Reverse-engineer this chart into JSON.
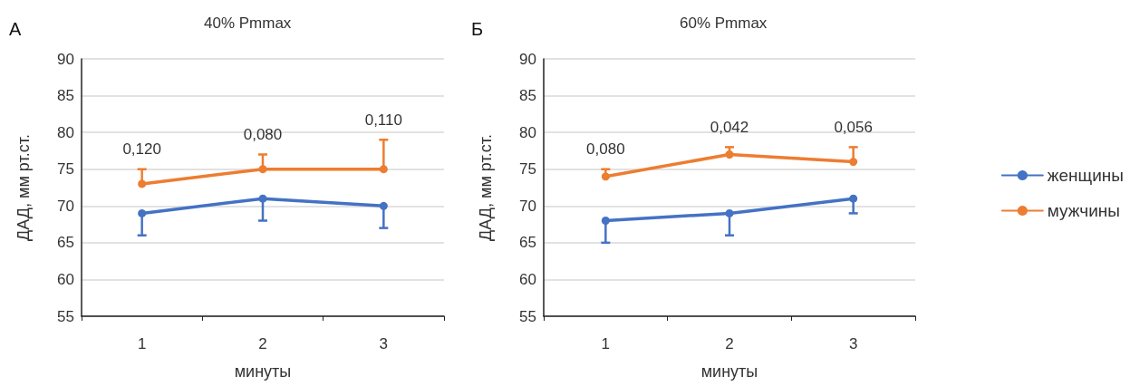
{
  "chart_data": [
    {
      "type": "line",
      "title": "40% Pmmax",
      "xlabel": "минуты",
      "ylabel": "ДАД, мм рт.ст.",
      "categories": [
        "1",
        "2",
        "3"
      ],
      "ylim": [
        55,
        90
      ],
      "yticks": [
        55,
        60,
        65,
        70,
        75,
        80,
        85,
        90
      ],
      "grid": "y",
      "legend": false,
      "marker": "circle",
      "line_style": "solid",
      "series": [
        {
          "color": "#4472c4",
          "values": [
            69,
            71,
            70
          ],
          "errors": [
            [
              66,
              69
            ],
            [
              68,
              71
            ],
            [
              67,
              70
            ]
          ]
        },
        {
          "color": "#ed7d31",
          "values": [
            73,
            75,
            75
          ],
          "errors": [
            [
              73,
              75
            ],
            [
              75,
              77
            ],
            [
              75,
              79
            ]
          ]
        }
      ],
      "annotations": [
        "А",
        "0,120",
        "0,080",
        "0,110"
      ]
    },
    {
      "type": "line",
      "title": "60% Pmmax",
      "xlabel": "минуты",
      "ylabel": "ДАД, мм рт.ст.",
      "categories": [
        "1",
        "2",
        "3"
      ],
      "ylim": [
        55,
        90
      ],
      "yticks": [
        55,
        60,
        65,
        70,
        75,
        80,
        85,
        90
      ],
      "grid": "y",
      "legend": "right",
      "marker": "circle",
      "line_style": "solid",
      "series": [
        {
          "name": "женщины",
          "color": "#4472c4",
          "values": [
            68,
            69,
            71
          ],
          "errors": [
            [
              65,
              68
            ],
            [
              66,
              69
            ],
            [
              69,
              71
            ]
          ]
        },
        {
          "name": "мужчины",
          "color": "#ed7d31",
          "values": [
            74,
            77,
            76
          ],
          "errors": [
            [
              74,
              75
            ],
            [
              77,
              78
            ],
            [
              76,
              78
            ]
          ]
        }
      ],
      "annotations": [
        "Б",
        "0,080",
        "0,042",
        "0,056"
      ]
    }
  ]
}
